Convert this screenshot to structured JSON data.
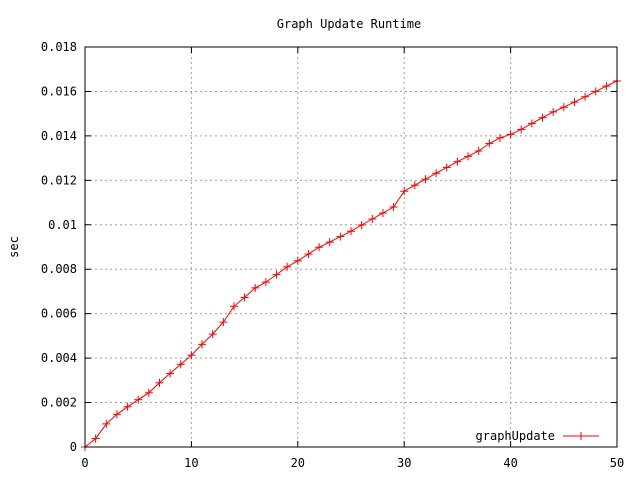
{
  "chart_data": {
    "type": "line",
    "title": "Graph Update Runtime",
    "xlabel": "",
    "ylabel": "sec",
    "xlim": [
      0,
      50
    ],
    "ylim": [
      0,
      0.018
    ],
    "x_ticks": [
      0,
      10,
      20,
      30,
      40,
      50
    ],
    "y_ticks": [
      0,
      0.002,
      0.004,
      0.006,
      0.008,
      0.01,
      0.012,
      0.014,
      0.016,
      0.018
    ],
    "x_tick_labels": [
      "0",
      "10",
      "20",
      "30",
      "40",
      "50"
    ],
    "y_tick_labels": [
      "0",
      "0.002",
      "0.004",
      "0.006",
      "0.008",
      "0.01",
      "0.012",
      "0.014",
      "0.016",
      "0.018"
    ],
    "grid": true,
    "legend_position": "bottom-right",
    "series": [
      {
        "name": "graphUpdate",
        "color": "#ff0000",
        "marker": "plus",
        "x": [
          0,
          1,
          2,
          3,
          4,
          5,
          6,
          7,
          8,
          9,
          10,
          11,
          12,
          13,
          14,
          15,
          16,
          17,
          18,
          19,
          20,
          21,
          22,
          23,
          24,
          25,
          26,
          27,
          28,
          29,
          30,
          31,
          32,
          33,
          34,
          35,
          36,
          37,
          38,
          39,
          40,
          41,
          42,
          43,
          44,
          45,
          46,
          47,
          48,
          49,
          50
        ],
        "values": [
          0.0,
          0.00038,
          0.00104,
          0.00147,
          0.00181,
          0.00213,
          0.00244,
          0.00289,
          0.00331,
          0.00372,
          0.00413,
          0.00462,
          0.00508,
          0.00562,
          0.00633,
          0.00673,
          0.00716,
          0.00742,
          0.00776,
          0.00811,
          0.00838,
          0.00868,
          0.00899,
          0.00922,
          0.00947,
          0.00971,
          0.00999,
          0.01026,
          0.01053,
          0.0108,
          0.01151,
          0.01178,
          0.01205,
          0.01232,
          0.01258,
          0.01284,
          0.01308,
          0.01332,
          0.01366,
          0.01391,
          0.01407,
          0.01429,
          0.01456,
          0.01482,
          0.01508,
          0.01529,
          0.01552,
          0.01576,
          0.016,
          0.01624,
          0.01647
        ]
      }
    ]
  }
}
